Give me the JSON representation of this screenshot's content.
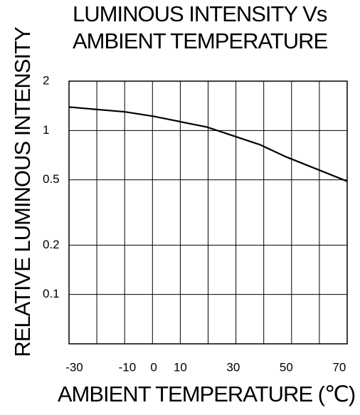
{
  "chart_data": {
    "type": "line",
    "title": [
      "LUMINOUS INTENSITY Vs",
      "AMBIENT TEMPERATURE"
    ],
    "xlabel": "AMBIENT TEMPERATURE (℃)",
    "ylabel": "RELATIVE LUMINOUS INTENSITY",
    "x": [
      -32,
      -11,
      0,
      20,
      40,
      50,
      73
    ],
    "series": [
      {
        "name": "Relative luminous intensity",
        "color": "#000000",
        "values": [
          1.39,
          1.3,
          1.22,
          1.05,
          0.82,
          0.69,
          0.49
        ]
      }
    ],
    "xlim": [
      -32,
      73
    ],
    "xticks": [
      -30,
      -10,
      0,
      10,
      30,
      50,
      70
    ],
    "ylim": [
      0.05,
      2
    ],
    "yticks": [
      0.1,
      0.2,
      0.5,
      1,
      2
    ],
    "ylog": true,
    "grid": true
  }
}
